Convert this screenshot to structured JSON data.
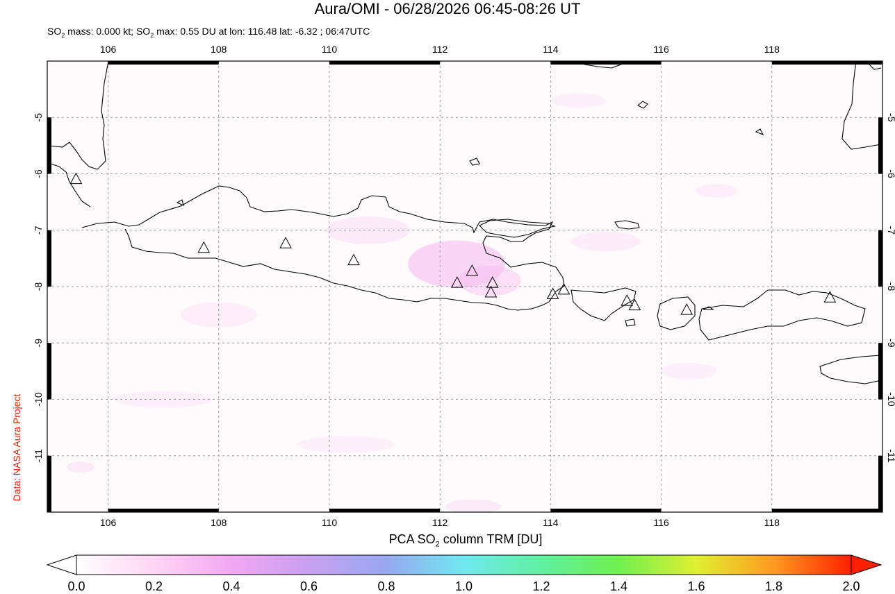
{
  "header": {
    "title": "Aura/OMI - 06/28/2026 06:45-08:26 UT",
    "subtitle_prefix": "SO",
    "subtitle_sub1": "2",
    "subtitle_mid": " mass: 0.000 kt; SO",
    "subtitle_sub2": "2",
    "subtitle_rest": " max: 0.55 DU at lon: 116.48 lat: -6.32 ; 06:47UTC"
  },
  "credit": "Data: NASA Aura Project",
  "map": {
    "lon_range": [
      104.9,
      120.0
    ],
    "lat_range": [
      -12.0,
      -4.0
    ],
    "lon_ticks": [
      "106",
      "108",
      "110",
      "112",
      "114",
      "116",
      "118"
    ],
    "lat_ticks": [
      "-5",
      "-6",
      "-7",
      "-8",
      "-9",
      "-10",
      "-11"
    ],
    "grid": "dashed",
    "volcanoes": [
      {
        "lon": 105.42,
        "lat": -6.1
      },
      {
        "lon": 107.73,
        "lat": -7.32
      },
      {
        "lon": 109.21,
        "lat": -7.24
      },
      {
        "lon": 110.44,
        "lat": -7.54
      },
      {
        "lon": 112.31,
        "lat": -7.94
      },
      {
        "lon": 112.58,
        "lat": -7.73
      },
      {
        "lon": 112.95,
        "lat": -7.94
      },
      {
        "lon": 112.92,
        "lat": -8.11
      },
      {
        "lon": 114.04,
        "lat": -8.14
      },
      {
        "lon": 114.24,
        "lat": -8.06
      },
      {
        "lon": 115.38,
        "lat": -8.26
      },
      {
        "lon": 115.52,
        "lat": -8.34
      },
      {
        "lon": 116.46,
        "lat": -8.42
      },
      {
        "lon": 119.05,
        "lat": -8.2
      }
    ]
  },
  "colorbar": {
    "title_prefix": "PCA SO",
    "title_sub": "2",
    "title_rest": " column TRM [DU]",
    "min": 0.0,
    "max": 2.0,
    "ticks": [
      "0.0",
      "0.2",
      "0.4",
      "0.6",
      "0.8",
      "1.0",
      "1.2",
      "1.4",
      "1.6",
      "1.8",
      "2.0"
    ],
    "colors": [
      "#ffffff",
      "#ffd6f4",
      "#f2a8f2",
      "#c8a0f0",
      "#98a8f0",
      "#70e8f0",
      "#60f0a0",
      "#70f050",
      "#e0f030",
      "#ff9a20",
      "#ff2000"
    ]
  }
}
